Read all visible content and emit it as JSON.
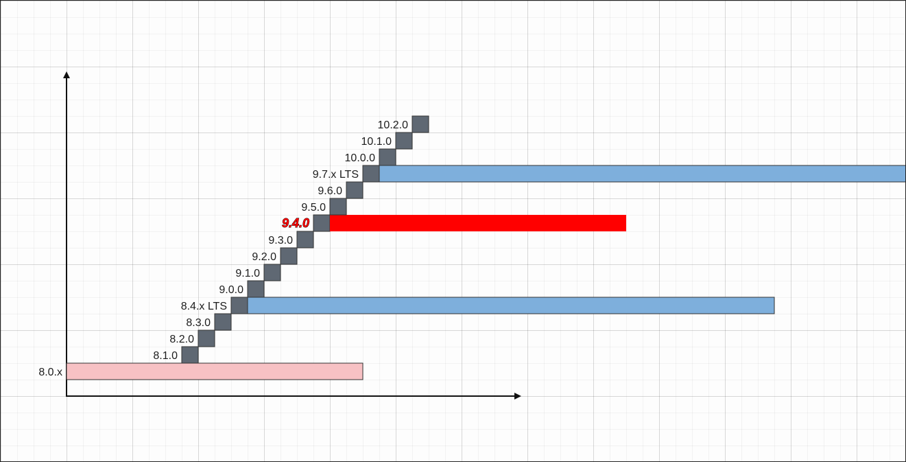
{
  "diagram": {
    "kind": "version-release-staircase",
    "colors": {
      "axis": "#111111",
      "step": "#5f6873",
      "lts_bar": "#7eafdc",
      "legacy_bar": "#f7c1c4",
      "highlight_bar": "#ff0000"
    },
    "releases": [
      {
        "id": "8.0.x",
        "label": "8.0.x",
        "bar": "legacy",
        "bar_length": 9
      },
      {
        "id": "8.1.0",
        "label": "8.1.0"
      },
      {
        "id": "8.2.0",
        "label": "8.2.0"
      },
      {
        "id": "8.3.0",
        "label": "8.3.0"
      },
      {
        "id": "8.4.x-lts",
        "label": "8.4.x LTS",
        "bar": "lts",
        "bar_length": 16
      },
      {
        "id": "9.0.0",
        "label": "9.0.0"
      },
      {
        "id": "9.1.0",
        "label": "9.1.0"
      },
      {
        "id": "9.2.0",
        "label": "9.2.0"
      },
      {
        "id": "9.3.0",
        "label": "9.3.0"
      },
      {
        "id": "9.4.0",
        "label": "9.4.0",
        "bar": "highlight",
        "bar_length": 9,
        "highlighted": true
      },
      {
        "id": "9.5.0",
        "label": "9.5.0"
      },
      {
        "id": "9.6.0",
        "label": "9.6.0"
      },
      {
        "id": "9.7.x-lts",
        "label": "9.7.x LTS",
        "bar": "lts",
        "bar_length": 16
      },
      {
        "id": "10.0.0",
        "label": "10.0.0"
      },
      {
        "id": "10.1.0",
        "label": "10.1.0"
      },
      {
        "id": "10.2.0",
        "label": "10.2.0"
      }
    ]
  }
}
